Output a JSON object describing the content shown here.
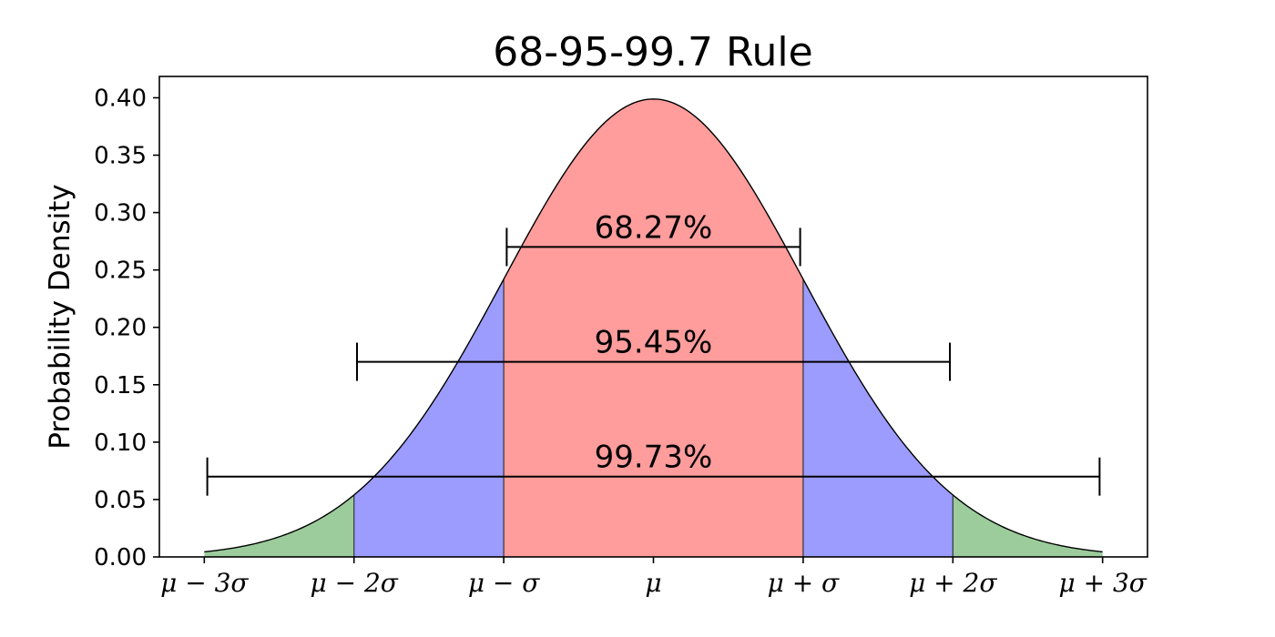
{
  "chart_data": {
    "type": "area",
    "title": "68-95-99.7 Rule",
    "ylabel": "Probability Density",
    "xlabel": "",
    "xlim": [
      -3.3,
      3.3
    ],
    "ylim": [
      0,
      0.4186
    ],
    "x_range_sigma": [
      -3,
      3
    ],
    "curve": "standard normal density",
    "x_ticks": [
      {
        "x": -3,
        "label": "μ − 3σ"
      },
      {
        "x": -2,
        "label": "μ − 2σ"
      },
      {
        "x": -1,
        "label": "μ − σ"
      },
      {
        "x": 0,
        "label": "μ"
      },
      {
        "x": 1,
        "label": "μ + σ"
      },
      {
        "x": 2,
        "label": "μ + 2σ"
      },
      {
        "x": 3,
        "label": "μ + 3σ"
      }
    ],
    "y_ticks": [
      {
        "y": 0.0,
        "label": "0.00"
      },
      {
        "y": 0.05,
        "label": "0.05"
      },
      {
        "y": 0.1,
        "label": "0.10"
      },
      {
        "y": 0.15,
        "label": "0.15"
      },
      {
        "y": 0.2,
        "label": "0.20"
      },
      {
        "y": 0.25,
        "label": "0.25"
      },
      {
        "y": 0.3,
        "label": "0.30"
      },
      {
        "y": 0.35,
        "label": "0.35"
      },
      {
        "y": 0.4,
        "label": "0.40"
      }
    ],
    "regions": [
      {
        "from": -3,
        "to": -2,
        "color": "#9ccc9c"
      },
      {
        "from": -2,
        "to": -1,
        "color": "#9c9cff"
      },
      {
        "from": -1,
        "to": 1,
        "color": "#ff9c9c"
      },
      {
        "from": 1,
        "to": 2,
        "color": "#9c9cff"
      },
      {
        "from": 2,
        "to": 3,
        "color": "#9ccc9c"
      }
    ],
    "intervals": [
      {
        "label": "68.27%",
        "from": -0.98,
        "to": 0.98,
        "y": 0.27
      },
      {
        "label": "95.45%",
        "from": -1.98,
        "to": 1.98,
        "y": 0.17
      },
      {
        "label": "99.73%",
        "from": -2.98,
        "to": 2.98,
        "y": 0.07
      }
    ],
    "grid": false,
    "legend": "none"
  }
}
